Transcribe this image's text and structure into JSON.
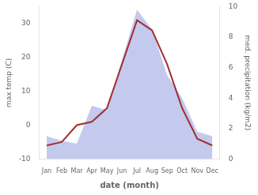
{
  "chart_data": {
    "type": "line",
    "xlabel": "date (month)",
    "ylabel": "max temp (C)",
    "y2label": "med. precipitation (kg/m2)",
    "categories": [
      "Jan",
      "Feb",
      "Mar",
      "Apr",
      "May",
      "Jun",
      "Jul",
      "Aug",
      "Sep",
      "Oct",
      "Nov",
      "Dec"
    ],
    "series": [
      {
        "type": "area",
        "color": "#b0b8e8",
        "axis": "y2",
        "values": [
          1.5,
          1.2,
          1.0,
          3.5,
          3.2,
          6.5,
          9.8,
          8.5,
          5.5,
          4.0,
          1.8,
          1.5
        ]
      },
      {
        "type": "line",
        "color": "#a03030",
        "values": [
          -6,
          -5,
          0,
          1,
          5,
          18,
          31,
          28,
          18,
          5,
          -4,
          -6
        ]
      }
    ],
    "ylim": [
      -10,
      35
    ],
    "yticks": [
      -10,
      0,
      10,
      20,
      30
    ],
    "y2lim": [
      0,
      10
    ],
    "y2ticks": [
      0,
      2,
      4,
      6,
      8,
      10
    ],
    "grid": false
  }
}
